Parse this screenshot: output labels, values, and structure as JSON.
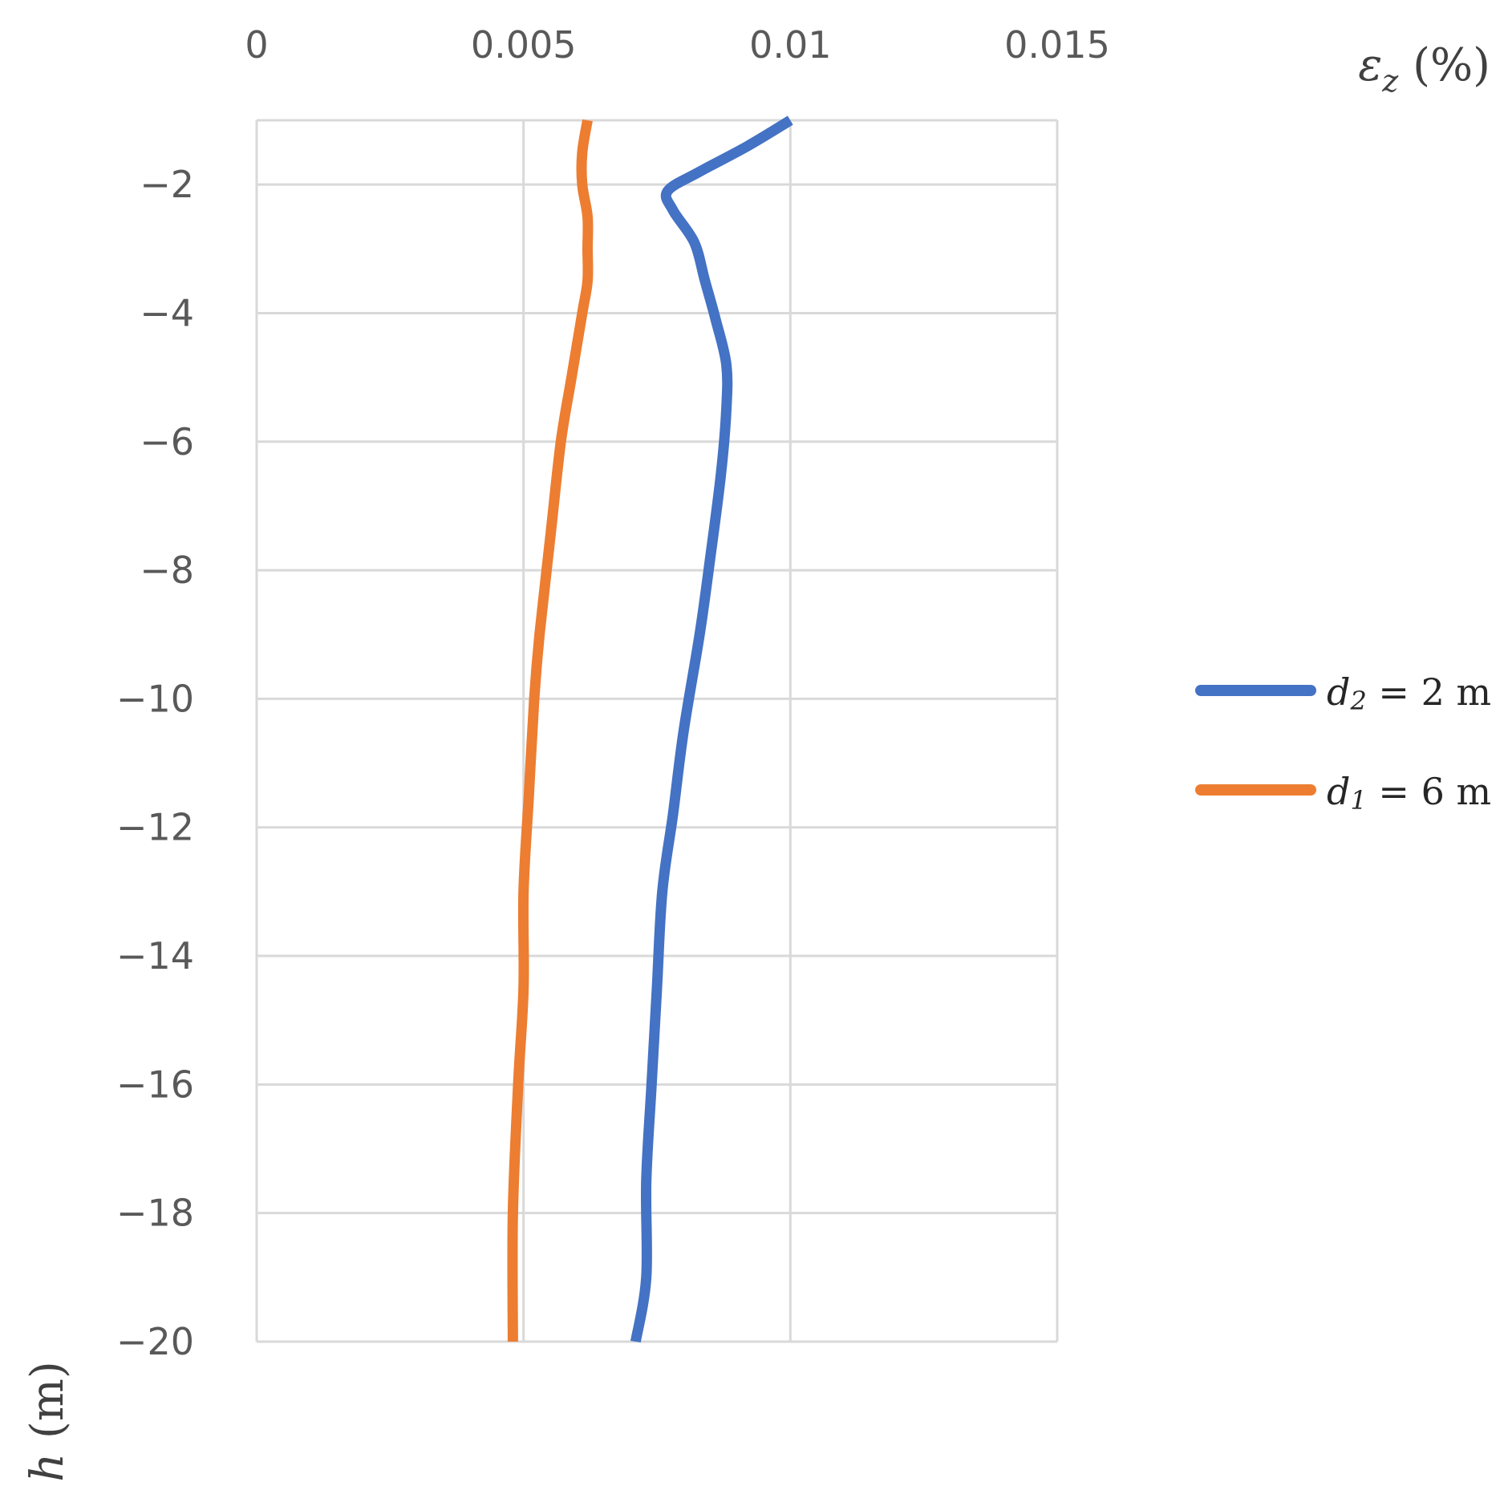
{
  "chart_data": {
    "type": "line",
    "title": "",
    "xlabel": {
      "symbol": "ε",
      "subscript": "z",
      "unit": "(%)"
    },
    "ylabel": {
      "symbol": "h",
      "unit": "(m)"
    },
    "xlim": [
      0,
      0.015
    ],
    "ylim": [
      -20,
      -1
    ],
    "x_ticks": [
      "0",
      "0.005",
      "0.01",
      "0.015"
    ],
    "y_ticks": [
      "−2",
      "−4",
      "−6",
      "−8",
      "−10",
      "−12",
      "−14",
      "−16",
      "−18",
      "−20"
    ],
    "x_tick_values": [
      0,
      0.005,
      0.01,
      0.015
    ],
    "y_tick_values": [
      -2,
      -4,
      -6,
      -8,
      -10,
      -12,
      -14,
      -16,
      -18,
      -20
    ],
    "grid": true,
    "legend_position": "right",
    "series": [
      {
        "name": "d2 = 2 m",
        "label": {
          "var": "d",
          "sub": "2",
          "rest": " = 2 m"
        },
        "color": "#4472c4",
        "points": [
          [
            0.01,
            -1.0
          ],
          [
            0.0092,
            -1.4
          ],
          [
            0.0083,
            -1.8
          ],
          [
            0.0077,
            -2.1
          ],
          [
            0.0078,
            -2.4
          ],
          [
            0.0082,
            -2.9
          ],
          [
            0.0084,
            -3.5
          ],
          [
            0.0086,
            -4.1
          ],
          [
            0.0088,
            -4.8
          ],
          [
            0.0088,
            -5.5
          ],
          [
            0.0087,
            -6.5
          ],
          [
            0.0085,
            -7.8
          ],
          [
            0.0083,
            -9.0
          ],
          [
            0.008,
            -10.5
          ],
          [
            0.0078,
            -11.8
          ],
          [
            0.0076,
            -13.0
          ],
          [
            0.0075,
            -14.5
          ],
          [
            0.0074,
            -16.0
          ],
          [
            0.0073,
            -17.5
          ],
          [
            0.0073,
            -19.0
          ],
          [
            0.0071,
            -20.0
          ]
        ]
      },
      {
        "name": "d1 = 6 m",
        "label": {
          "var": "d",
          "sub": "1",
          "rest": " = 6 m"
        },
        "color": "#ed7d31",
        "points": [
          [
            0.0062,
            -1.0
          ],
          [
            0.0061,
            -1.5
          ],
          [
            0.0061,
            -2.0
          ],
          [
            0.0062,
            -2.5
          ],
          [
            0.0062,
            -3.0
          ],
          [
            0.0062,
            -3.5
          ],
          [
            0.0061,
            -4.0
          ],
          [
            0.0059,
            -5.0
          ],
          [
            0.0057,
            -6.0
          ],
          [
            0.0055,
            -7.5
          ],
          [
            0.0053,
            -9.0
          ],
          [
            0.0052,
            -10.0
          ],
          [
            0.0051,
            -11.5
          ],
          [
            0.005,
            -13.0
          ],
          [
            0.005,
            -14.5
          ],
          [
            0.0049,
            -16.0
          ],
          [
            0.0048,
            -18.0
          ],
          [
            0.0048,
            -20.0
          ]
        ]
      }
    ]
  }
}
